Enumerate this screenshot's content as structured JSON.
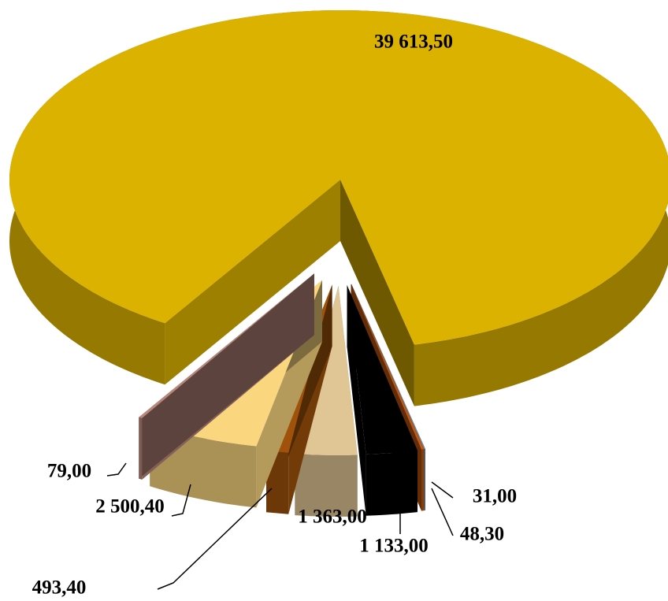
{
  "chart_data": {
    "type": "pie",
    "values": [
      39613.5,
      31.0,
      48.3,
      1133.0,
      1363.0,
      493.4,
      2500.4,
      79.0
    ],
    "value_labels": [
      "39 613,50",
      "31,00",
      "48,30",
      "1 133,00",
      "1 363,00",
      "493,40",
      "2 500,40",
      "79,00"
    ],
    "colors": [
      "#dcb200",
      "#808080",
      "#c55a11",
      "#000000",
      "#e0c595",
      "#a0520a",
      "#fad67f",
      "#b8867a"
    ]
  }
}
